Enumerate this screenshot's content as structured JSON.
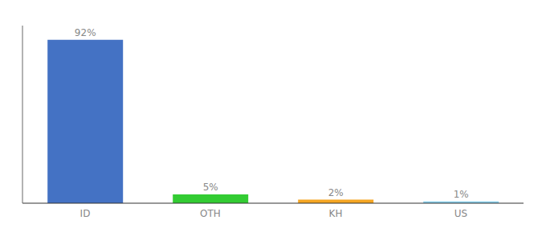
{
  "chart_data": {
    "type": "bar",
    "categories": [
      "ID",
      "OTH",
      "KH",
      "US"
    ],
    "values": [
      92,
      5,
      2,
      1
    ],
    "value_labels": [
      "92%",
      "5%",
      "2%",
      "1%"
    ],
    "data_labels": true,
    "colors": [
      "#4472c4",
      "#33cc33",
      "#f5a623",
      "#87ceeb"
    ],
    "ylim": [
      0,
      100
    ],
    "tick_labels": "x",
    "grid": false
  }
}
